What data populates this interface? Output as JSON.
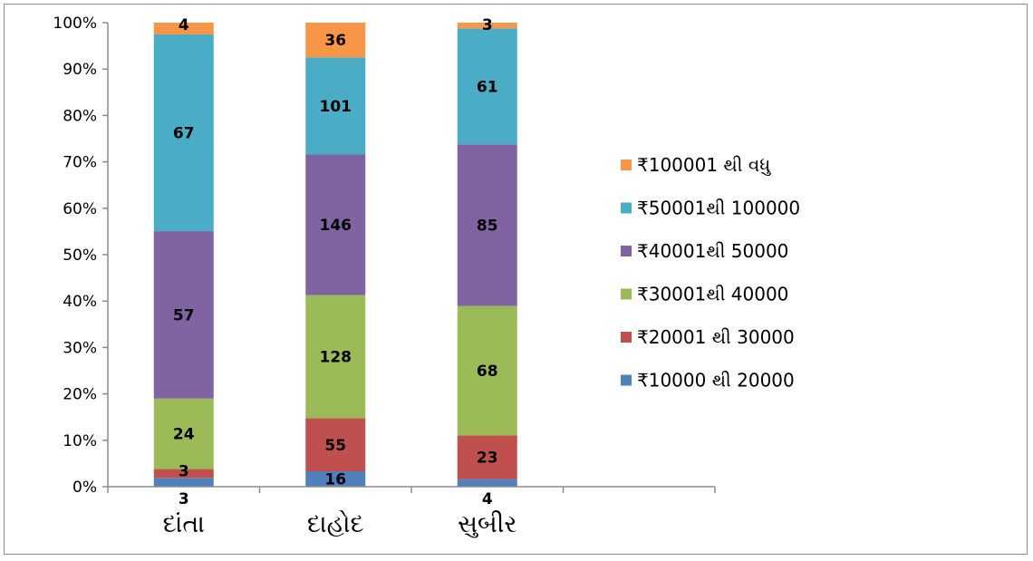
{
  "chart_data": {
    "type": "bar",
    "stacked": "percent",
    "categories": [
      "દાંતા",
      "દાહોદ",
      "સુબીર"
    ],
    "series": [
      {
        "name": "₹10000 થી 20000",
        "color": "#4f81bd",
        "values": [
          3,
          16,
          4
        ]
      },
      {
        "name": "₹20001 થી 30000",
        "color": "#c0504d",
        "values": [
          3,
          55,
          23
        ]
      },
      {
        "name": "₹30001થી 40000",
        "color": "#9bbb59",
        "values": [
          24,
          128,
          68
        ]
      },
      {
        "name": "₹40001થી 50000",
        "color": "#8064a2",
        "values": [
          57,
          146,
          85
        ]
      },
      {
        "name": "₹50001થી 100000",
        "color": "#4bacc6",
        "values": [
          67,
          101,
          61
        ]
      },
      {
        "name": "₹100001 થી વધુ",
        "color": "#f79646",
        "values": [
          4,
          36,
          3
        ]
      }
    ],
    "yticks": [
      "0%",
      "10%",
      "20%",
      "30%",
      "40%",
      "50%",
      "60%",
      "70%",
      "80%",
      "90%",
      "100%"
    ],
    "ylim": [
      0,
      100
    ],
    "legend_position": "right",
    "grid": false
  }
}
